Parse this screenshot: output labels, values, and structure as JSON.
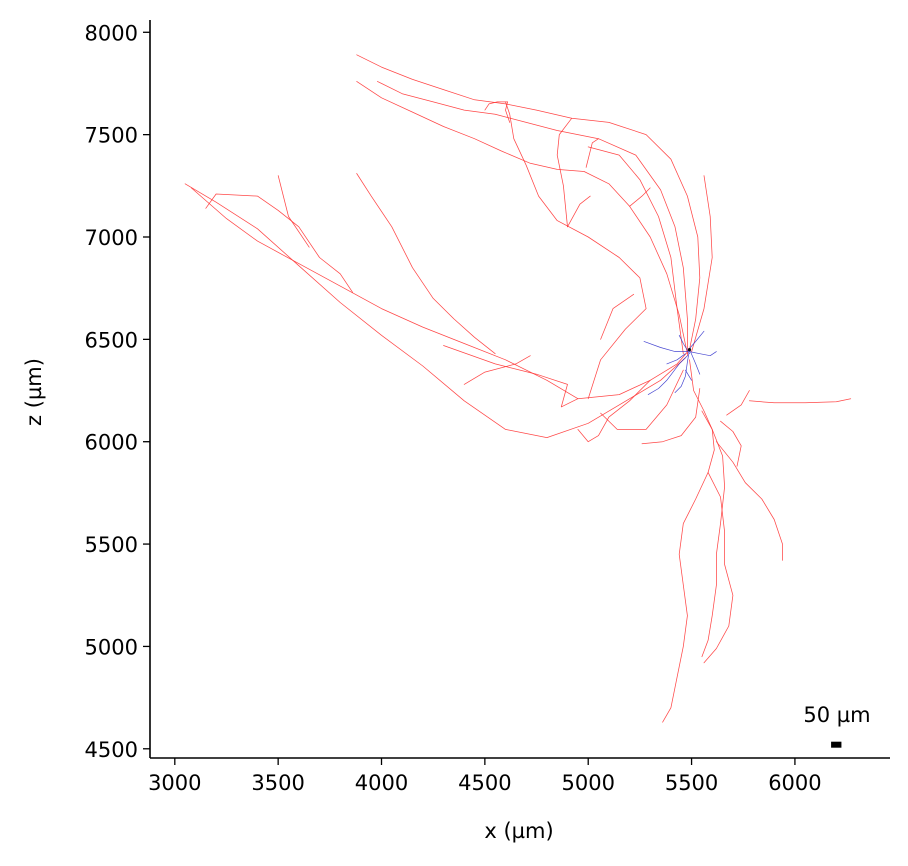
{
  "chart_data": {
    "type": "line",
    "xlabel": "x (µm)",
    "ylabel": "z (µm)",
    "xlim": [
      2880,
      6460
    ],
    "ylim": [
      4455,
      8060
    ],
    "x_ticks": [
      3000,
      3500,
      4000,
      4500,
      5000,
      5500,
      6000
    ],
    "y_ticks": [
      4500,
      5000,
      5500,
      6000,
      6500,
      7000,
      7500,
      8000
    ],
    "x_tick_labels": [
      "3000",
      "3500",
      "4000",
      "4500",
      "5000",
      "5500",
      "6000"
    ],
    "y_tick_labels": [
      "4500",
      "5000",
      "5500",
      "6000",
      "6500",
      "7000",
      "7500",
      "8000"
    ],
    "scale_bar": {
      "label": "50 µm",
      "length": 50,
      "x": 6200,
      "z": 4520
    },
    "grid": false,
    "series": [
      {
        "color": "#ff3333",
        "paths": [
          [
            [
              5490,
              6450
            ],
            [
              5430,
              6380
            ],
            [
              5300,
              6300
            ],
            [
              5150,
              6230
            ],
            [
              4950,
              6210
            ],
            [
              4800,
              6300
            ],
            [
              4600,
              6400
            ],
            [
              4400,
              6480
            ],
            [
              4200,
              6560
            ],
            [
              4000,
              6650
            ],
            [
              3800,
              6760
            ],
            [
              3600,
              6870
            ],
            [
              3400,
              6980
            ],
            [
              3250,
              7090
            ],
            [
              3080,
              7240
            ]
          ],
          [
            [
              5470,
              6410
            ],
            [
              5350,
              6300
            ],
            [
              5150,
              6180
            ],
            [
              5000,
              6090
            ],
            [
              4800,
              6020
            ],
            [
              4600,
              6060
            ],
            [
              4400,
              6200
            ],
            [
              4200,
              6370
            ],
            [
              4000,
              6520
            ],
            [
              3800,
              6680
            ],
            [
              3600,
              6860
            ],
            [
              3400,
              7040
            ],
            [
              3200,
              7170
            ],
            [
              3050,
              7260
            ]
          ],
          [
            [
              4950,
              6210
            ],
            [
              4870,
              6170
            ],
            [
              4900,
              6280
            ],
            [
              4750,
              6330
            ],
            [
              4550,
              6380
            ],
            [
              4300,
              6470
            ]
          ],
          [
            [
              4400,
              6280
            ],
            [
              4500,
              6340
            ],
            [
              4650,
              6380
            ],
            [
              4720,
              6420
            ]
          ],
          [
            [
              3860,
              6730
            ],
            [
              3800,
              6820
            ],
            [
              3700,
              6900
            ],
            [
              3600,
              7050
            ],
            [
              3500,
              7130
            ],
            [
              3400,
              7200
            ],
            [
              3200,
              7210
            ],
            [
              3150,
              7140
            ]
          ],
          [
            [
              3880,
              7310
            ],
            [
              3950,
              7200
            ],
            [
              4050,
              7050
            ],
            [
              4150,
              6850
            ],
            [
              4250,
              6700
            ],
            [
              4350,
              6600
            ],
            [
              4450,
              6510
            ],
            [
              4550,
              6430
            ]
          ],
          [
            [
              3500,
              7300
            ],
            [
              3550,
              7100
            ],
            [
              3650,
              6950
            ]
          ],
          [
            [
              5490,
              6450
            ],
            [
              5520,
              6600
            ],
            [
              5540,
              6800
            ],
            [
              5530,
              7000
            ],
            [
              5480,
              7200
            ],
            [
              5400,
              7380
            ],
            [
              5280,
              7500
            ],
            [
              5100,
              7560
            ],
            [
              4920,
              7580
            ],
            [
              4750,
              7620
            ],
            [
              4600,
              7650
            ],
            [
              4450,
              7670
            ],
            [
              4300,
              7720
            ],
            [
              4150,
              7770
            ],
            [
              4000,
              7830
            ],
            [
              3880,
              7890
            ]
          ],
          [
            [
              5480,
              6420
            ],
            [
              5480,
              6600
            ],
            [
              5460,
              6850
            ],
            [
              5420,
              7050
            ],
            [
              5350,
              7230
            ],
            [
              5230,
              7400
            ],
            [
              5050,
              7480
            ],
            [
              4850,
              7520
            ],
            [
              4700,
              7560
            ],
            [
              4550,
              7600
            ],
            [
              4400,
              7620
            ],
            [
              4250,
              7660
            ],
            [
              4100,
              7700
            ],
            [
              3980,
              7760
            ]
          ],
          [
            [
              5500,
              6440
            ],
            [
              5560,
              6650
            ],
            [
              5600,
              6900
            ],
            [
              5590,
              7100
            ],
            [
              5560,
              7300
            ]
          ],
          [
            [
              5460,
              6430
            ],
            [
              5430,
              6650
            ],
            [
              5400,
              6900
            ],
            [
              5340,
              7100
            ],
            [
              5250,
              7280
            ],
            [
              5150,
              7400
            ],
            [
              5000,
              7440
            ]
          ],
          [
            [
              5480,
              6430
            ],
            [
              5440,
              6620
            ],
            [
              5380,
              6820
            ],
            [
              5300,
              7000
            ],
            [
              5200,
              7150
            ],
            [
              5100,
              7260
            ],
            [
              4980,
              7320
            ],
            [
              4850,
              7330
            ],
            [
              4720,
              7360
            ],
            [
              4580,
              7420
            ],
            [
              4450,
              7480
            ],
            [
              4300,
              7540
            ],
            [
              4150,
              7610
            ],
            [
              4000,
              7680
            ],
            [
              3880,
              7760
            ]
          ],
          [
            [
              5000,
              6210
            ],
            [
              5060,
              6400
            ],
            [
              5180,
              6550
            ],
            [
              5280,
              6650
            ],
            [
              5250,
              6800
            ],
            [
              5150,
              6900
            ],
            [
              5000,
              7000
            ],
            [
              4850,
              7080
            ],
            [
              4760,
              7200
            ],
            [
              4700,
              7350
            ],
            [
              4640,
              7480
            ],
            [
              4620,
              7600
            ],
            [
              4600,
              7660
            ]
          ],
          [
            [
              4900,
              7050
            ],
            [
              4880,
              7250
            ],
            [
              4850,
              7400
            ],
            [
              4860,
              7500
            ],
            [
              4920,
              7580
            ]
          ],
          [
            [
              5300,
              6300
            ],
            [
              5200,
              6200
            ],
            [
              5100,
              6120
            ],
            [
              5050,
              6030
            ],
            [
              5000,
              6000
            ],
            [
              4950,
              6060
            ]
          ],
          [
            [
              5460,
              6350
            ],
            [
              5380,
              6180
            ],
            [
              5280,
              6060
            ],
            [
              5140,
              6060
            ],
            [
              5060,
              6140
            ]
          ],
          [
            [
              5060,
              6500
            ],
            [
              5120,
              6650
            ],
            [
              5220,
              6720
            ]
          ],
          [
            [
              5490,
              6400
            ],
            [
              5510,
              6250
            ],
            [
              5560,
              6150
            ],
            [
              5600,
              6060
            ],
            [
              5610,
              5960
            ],
            [
              5580,
              5850
            ],
            [
              5520,
              5720
            ],
            [
              5460,
              5600
            ],
            [
              5440,
              5450
            ],
            [
              5460,
              5300
            ],
            [
              5480,
              5150
            ],
            [
              5460,
              5000
            ],
            [
              5430,
              4850
            ],
            [
              5400,
              4700
            ],
            [
              5360,
              4630
            ]
          ],
          [
            [
              5550,
              6150
            ],
            [
              5600,
              6060
            ],
            [
              5650,
              5930
            ],
            [
              5660,
              5780
            ],
            [
              5640,
              5600
            ],
            [
              5620,
              5450
            ],
            [
              5620,
              5300
            ],
            [
              5600,
              5150
            ],
            [
              5580,
              5030
            ],
            [
              5550,
              4950
            ]
          ],
          [
            [
              5580,
              5850
            ],
            [
              5640,
              5730
            ],
            [
              5660,
              5560
            ],
            [
              5660,
              5400
            ],
            [
              5700,
              5250
            ],
            [
              5680,
              5100
            ],
            [
              5620,
              4990
            ],
            [
              5560,
              4920
            ]
          ],
          [
            [
              5620,
              6000
            ],
            [
              5700,
              5900
            ],
            [
              5760,
              5800
            ],
            [
              5840,
              5720
            ],
            [
              5900,
              5620
            ],
            [
              5940,
              5500
            ],
            [
              5940,
              5420
            ]
          ],
          [
            [
              5670,
              6130
            ],
            [
              5740,
              6180
            ],
            [
              5780,
              6250
            ]
          ],
          [
            [
              5780,
              6200
            ],
            [
              5900,
              6190
            ],
            [
              6050,
              6190
            ],
            [
              6200,
              6195
            ],
            [
              6270,
              6210
            ]
          ],
          [
            [
              5640,
              6100
            ],
            [
              5700,
              6050
            ],
            [
              5740,
              5980
            ],
            [
              5720,
              5880
            ]
          ],
          [
            [
              5540,
              6260
            ],
            [
              5520,
              6120
            ],
            [
              5450,
              6030
            ],
            [
              5360,
              6000
            ],
            [
              5260,
              5990
            ]
          ],
          [
            [
              4610,
              7660
            ],
            [
              4600,
              7620
            ],
            [
              4620,
              7560
            ]
          ],
          [
            [
              4610,
              7660
            ],
            [
              4560,
              7660
            ],
            [
              4520,
              7650
            ],
            [
              4500,
              7620
            ]
          ],
          [
            [
              4900,
              7050
            ],
            [
              4960,
              7160
            ],
            [
              5010,
              7200
            ]
          ],
          [
            [
              5200,
              7150
            ],
            [
              5260,
              7200
            ],
            [
              5300,
              7240
            ]
          ],
          [
            [
              4990,
              7340
            ],
            [
              5020,
              7460
            ],
            [
              5050,
              7480
            ]
          ]
        ]
      },
      {
        "color": "#3333cc",
        "paths": [
          [
            [
              5490,
              6450
            ],
            [
              5480,
              6390
            ],
            [
              5470,
              6320
            ],
            [
              5450,
              6270
            ],
            [
              5420,
              6240
            ]
          ],
          [
            [
              5480,
              6440
            ],
            [
              5420,
              6440
            ],
            [
              5350,
              6460
            ],
            [
              5270,
              6490
            ]
          ],
          [
            [
              5485,
              6450
            ],
            [
              5520,
              6490
            ],
            [
              5560,
              6540
            ]
          ],
          [
            [
              5480,
              6420
            ],
            [
              5440,
              6380
            ],
            [
              5380,
              6300
            ],
            [
              5340,
              6260
            ],
            [
              5290,
              6230
            ]
          ],
          [
            [
              5490,
              6440
            ],
            [
              5540,
              6430
            ],
            [
              5590,
              6420
            ],
            [
              5620,
              6440
            ]
          ],
          [
            [
              5470,
              6430
            ],
            [
              5430,
              6400
            ],
            [
              5380,
              6380
            ]
          ],
          [
            [
              5495,
              6440
            ],
            [
              5520,
              6380
            ],
            [
              5540,
              6330
            ]
          ],
          [
            [
              5490,
              6430
            ],
            [
              5460,
              6480
            ],
            [
              5440,
              6520
            ]
          ],
          [
            [
              5470,
              6350
            ],
            [
              5500,
              6300
            ]
          ]
        ]
      }
    ]
  }
}
